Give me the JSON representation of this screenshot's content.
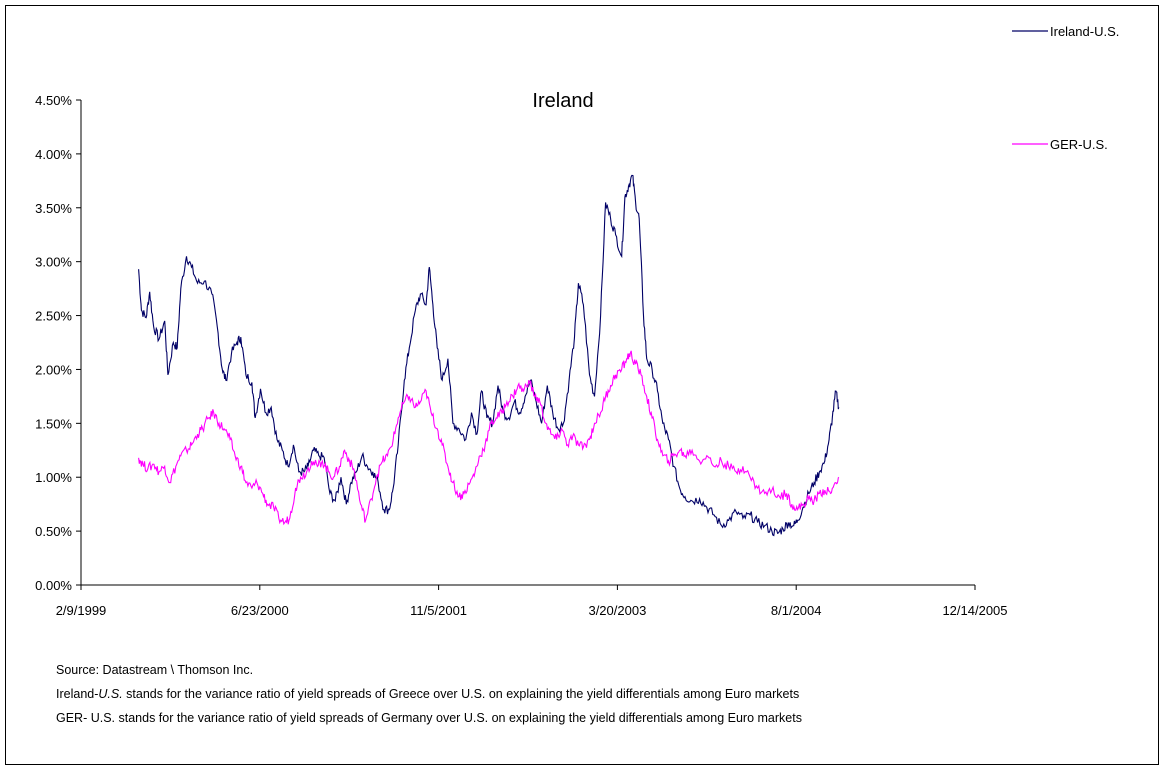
{
  "chart_data": {
    "type": "line",
    "title": "Ireland",
    "xlabel": "",
    "ylabel": "",
    "x_axis": {
      "type": "date",
      "range": [
        "1999-02-09",
        "2005-12-14"
      ],
      "tick_labels": [
        "2/9/1999",
        "6/23/2000",
        "11/5/2001",
        "3/20/2003",
        "8/1/2004",
        "12/14/2005"
      ],
      "tick_dates": [
        "1999-02-09",
        "2000-06-23",
        "2001-11-05",
        "2003-03-20",
        "2004-08-01",
        "2005-12-14"
      ]
    },
    "y_axis": {
      "range": [
        0,
        4.5
      ],
      "unit": "%",
      "tick_values": [
        0,
        0.5,
        1.0,
        1.5,
        2.0,
        2.5,
        3.0,
        3.5,
        4.0,
        4.5
      ],
      "tick_labels": [
        "0.00%",
        "0.50%",
        "1.00%",
        "1.50%",
        "2.00%",
        "2.50%",
        "3.00%",
        "3.50%",
        "4.00%",
        "4.50%"
      ]
    },
    "grid": false,
    "legend_position": "top-right",
    "series": [
      {
        "name": "Ireland-U.S.",
        "color": "#000066",
        "points": [
          [
            "1999-07-20",
            2.93
          ],
          [
            "1999-07-28",
            2.55
          ],
          [
            "1999-08-10",
            2.48
          ],
          [
            "1999-08-20",
            2.72
          ],
          [
            "1999-08-31",
            2.4
          ],
          [
            "1999-09-15",
            2.28
          ],
          [
            "1999-10-01",
            2.45
          ],
          [
            "1999-10-10",
            1.95
          ],
          [
            "1999-10-25",
            2.25
          ],
          [
            "1999-11-05",
            2.2
          ],
          [
            "1999-11-15",
            2.75
          ],
          [
            "1999-12-01",
            3.05
          ],
          [
            "1999-12-15",
            2.95
          ],
          [
            "2000-01-01",
            2.8
          ],
          [
            "2000-01-20",
            2.82
          ],
          [
            "2000-02-10",
            2.7
          ],
          [
            "2000-02-25",
            2.4
          ],
          [
            "2000-03-10",
            2.0
          ],
          [
            "2000-03-20",
            1.9
          ],
          [
            "2000-04-05",
            2.15
          ],
          [
            "2000-04-20",
            2.25
          ],
          [
            "2000-05-01",
            2.3
          ],
          [
            "2000-05-15",
            1.95
          ],
          [
            "2000-06-01",
            1.88
          ],
          [
            "2000-06-10",
            1.55
          ],
          [
            "2000-06-25",
            1.82
          ],
          [
            "2000-07-10",
            1.6
          ],
          [
            "2000-07-25",
            1.65
          ],
          [
            "2000-08-10",
            1.35
          ],
          [
            "2000-08-25",
            1.25
          ],
          [
            "2000-09-10",
            1.1
          ],
          [
            "2000-09-25",
            1.3
          ],
          [
            "2000-10-10",
            1.05
          ],
          [
            "2000-10-25",
            1.05
          ],
          [
            "2000-11-05",
            1.1
          ],
          [
            "2000-11-20",
            1.25
          ],
          [
            "2000-12-05",
            1.2
          ],
          [
            "2000-12-20",
            1.18
          ],
          [
            "2001-01-05",
            0.85
          ],
          [
            "2001-01-20",
            0.78
          ],
          [
            "2001-02-05",
            1.0
          ],
          [
            "2001-02-20",
            0.75
          ],
          [
            "2001-03-05",
            0.95
          ],
          [
            "2001-03-20",
            1.05
          ],
          [
            "2001-04-05",
            1.2
          ],
          [
            "2001-04-20",
            1.1
          ],
          [
            "2001-05-05",
            1.05
          ],
          [
            "2001-05-20",
            0.95
          ],
          [
            "2001-06-05",
            0.7
          ],
          [
            "2001-06-20",
            0.7
          ],
          [
            "2001-07-01",
            0.9
          ],
          [
            "2001-07-15",
            1.3
          ],
          [
            "2001-08-01",
            1.9
          ],
          [
            "2001-08-15",
            2.2
          ],
          [
            "2001-09-01",
            2.55
          ],
          [
            "2001-09-15",
            2.7
          ],
          [
            "2001-10-01",
            2.6
          ],
          [
            "2001-10-10",
            2.95
          ],
          [
            "2001-10-20",
            2.6
          ],
          [
            "2001-11-01",
            2.2
          ],
          [
            "2001-11-15",
            1.9
          ],
          [
            "2001-12-01",
            2.1
          ],
          [
            "2001-12-15",
            1.5
          ],
          [
            "2002-01-01",
            1.45
          ],
          [
            "2002-01-20",
            1.35
          ],
          [
            "2002-02-05",
            1.6
          ],
          [
            "2002-02-20",
            1.4
          ],
          [
            "2002-03-05",
            1.8
          ],
          [
            "2002-03-20",
            1.55
          ],
          [
            "2002-04-05",
            1.5
          ],
          [
            "2002-04-20",
            1.85
          ],
          [
            "2002-05-05",
            1.6
          ],
          [
            "2002-05-20",
            1.55
          ],
          [
            "2002-06-05",
            1.7
          ],
          [
            "2002-06-20",
            1.6
          ],
          [
            "2002-07-05",
            1.75
          ],
          [
            "2002-07-20",
            1.9
          ],
          [
            "2002-08-05",
            1.7
          ],
          [
            "2002-08-20",
            1.5
          ],
          [
            "2002-09-05",
            1.85
          ],
          [
            "2002-09-20",
            1.6
          ],
          [
            "2002-10-05",
            1.45
          ],
          [
            "2002-10-20",
            1.5
          ],
          [
            "2002-11-05",
            1.9
          ],
          [
            "2002-11-20",
            2.3
          ],
          [
            "2002-12-01",
            2.8
          ],
          [
            "2002-12-15",
            2.6
          ],
          [
            "2003-01-01",
            1.95
          ],
          [
            "2003-01-15",
            1.75
          ],
          [
            "2003-02-01",
            2.5
          ],
          [
            "2003-02-15",
            3.55
          ],
          [
            "2003-03-01",
            3.4
          ],
          [
            "2003-03-15",
            3.25
          ],
          [
            "2003-04-01",
            3.05
          ],
          [
            "2003-04-10",
            3.6
          ],
          [
            "2003-04-20",
            3.7
          ],
          [
            "2003-05-01",
            3.8
          ],
          [
            "2003-05-10",
            3.55
          ],
          [
            "2003-05-20",
            3.4
          ],
          [
            "2003-06-01",
            2.5
          ],
          [
            "2003-06-10",
            2.1
          ],
          [
            "2003-06-25",
            2.0
          ],
          [
            "2003-07-10",
            1.8
          ],
          [
            "2003-07-25",
            1.5
          ],
          [
            "2003-08-10",
            1.35
          ],
          [
            "2003-08-25",
            1.1
          ],
          [
            "2003-09-10",
            0.9
          ],
          [
            "2003-09-25",
            0.82
          ],
          [
            "2003-10-15",
            0.78
          ],
          [
            "2003-11-05",
            0.8
          ],
          [
            "2003-11-25",
            0.72
          ],
          [
            "2003-12-15",
            0.65
          ],
          [
            "2004-01-05",
            0.55
          ],
          [
            "2004-01-25",
            0.6
          ],
          [
            "2004-02-15",
            0.68
          ],
          [
            "2004-03-05",
            0.62
          ],
          [
            "2004-03-25",
            0.65
          ],
          [
            "2004-04-15",
            0.58
          ],
          [
            "2004-05-05",
            0.55
          ],
          [
            "2004-05-25",
            0.5
          ],
          [
            "2004-06-10",
            0.48
          ],
          [
            "2004-06-25",
            0.52
          ],
          [
            "2004-07-10",
            0.58
          ],
          [
            "2004-07-25",
            0.55
          ],
          [
            "2004-08-05",
            0.6
          ],
          [
            "2004-08-20",
            0.72
          ],
          [
            "2004-09-05",
            0.85
          ],
          [
            "2004-09-20",
            0.95
          ],
          [
            "2004-10-05",
            1.05
          ],
          [
            "2004-10-20",
            1.15
          ],
          [
            "2004-11-01",
            1.35
          ],
          [
            "2004-11-10",
            1.55
          ],
          [
            "2004-11-20",
            1.8
          ],
          [
            "2004-11-28",
            1.65
          ]
        ]
      },
      {
        "name": "GER-U.S.",
        "color": "#ff00ff",
        "points": [
          [
            "1999-07-20",
            1.18
          ],
          [
            "1999-08-01",
            1.12
          ],
          [
            "1999-08-15",
            1.08
          ],
          [
            "1999-09-01",
            1.12
          ],
          [
            "1999-09-15",
            1.05
          ],
          [
            "1999-10-01",
            1.1
          ],
          [
            "1999-10-15",
            0.95
          ],
          [
            "1999-11-01",
            1.1
          ],
          [
            "1999-11-15",
            1.2
          ],
          [
            "1999-12-01",
            1.25
          ],
          [
            "1999-12-15",
            1.3
          ],
          [
            "2000-01-01",
            1.4
          ],
          [
            "2000-01-15",
            1.45
          ],
          [
            "2000-02-01",
            1.55
          ],
          [
            "2000-02-15",
            1.6
          ],
          [
            "2000-03-01",
            1.5
          ],
          [
            "2000-03-15",
            1.45
          ],
          [
            "2000-04-01",
            1.35
          ],
          [
            "2000-04-15",
            1.2
          ],
          [
            "2000-05-01",
            1.1
          ],
          [
            "2000-05-15",
            0.95
          ],
          [
            "2000-06-01",
            0.9
          ],
          [
            "2000-06-15",
            0.95
          ],
          [
            "2000-07-01",
            0.85
          ],
          [
            "2000-07-15",
            0.75
          ],
          [
            "2000-08-01",
            0.72
          ],
          [
            "2000-08-15",
            0.62
          ],
          [
            "2000-09-01",
            0.58
          ],
          [
            "2000-09-15",
            0.62
          ],
          [
            "2000-10-01",
            0.9
          ],
          [
            "2000-10-15",
            1.0
          ],
          [
            "2000-11-01",
            1.05
          ],
          [
            "2000-11-15",
            1.15
          ],
          [
            "2000-12-01",
            1.1
          ],
          [
            "2000-12-15",
            1.15
          ],
          [
            "2001-01-01",
            1.05
          ],
          [
            "2001-01-15",
            1.0
          ],
          [
            "2001-02-01",
            1.1
          ],
          [
            "2001-02-15",
            1.25
          ],
          [
            "2001-03-01",
            1.15
          ],
          [
            "2001-03-15",
            1.05
          ],
          [
            "2001-04-01",
            0.75
          ],
          [
            "2001-04-15",
            0.6
          ],
          [
            "2001-05-01",
            0.8
          ],
          [
            "2001-05-15",
            1.0
          ],
          [
            "2001-06-01",
            1.15
          ],
          [
            "2001-06-15",
            1.2
          ],
          [
            "2001-07-01",
            1.35
          ],
          [
            "2001-07-15",
            1.55
          ],
          [
            "2001-08-01",
            1.7
          ],
          [
            "2001-08-15",
            1.75
          ],
          [
            "2001-09-01",
            1.65
          ],
          [
            "2001-09-15",
            1.7
          ],
          [
            "2001-10-01",
            1.8
          ],
          [
            "2001-10-15",
            1.6
          ],
          [
            "2001-11-01",
            1.45
          ],
          [
            "2001-11-15",
            1.3
          ],
          [
            "2001-12-01",
            1.1
          ],
          [
            "2001-12-15",
            0.95
          ],
          [
            "2002-01-01",
            0.82
          ],
          [
            "2002-01-15",
            0.85
          ],
          [
            "2002-02-01",
            0.95
          ],
          [
            "2002-02-15",
            1.05
          ],
          [
            "2002-03-01",
            1.2
          ],
          [
            "2002-03-15",
            1.3
          ],
          [
            "2002-04-01",
            1.5
          ],
          [
            "2002-04-15",
            1.55
          ],
          [
            "2002-05-01",
            1.6
          ],
          [
            "2002-05-15",
            1.7
          ],
          [
            "2002-06-01",
            1.75
          ],
          [
            "2002-06-15",
            1.85
          ],
          [
            "2002-07-01",
            1.8
          ],
          [
            "2002-07-15",
            1.9
          ],
          [
            "2002-08-01",
            1.75
          ],
          [
            "2002-08-15",
            1.7
          ],
          [
            "2002-09-01",
            1.5
          ],
          [
            "2002-09-15",
            1.4
          ],
          [
            "2002-10-01",
            1.35
          ],
          [
            "2002-10-15",
            1.45
          ],
          [
            "2002-11-01",
            1.3
          ],
          [
            "2002-11-15",
            1.38
          ],
          [
            "2002-12-01",
            1.3
          ],
          [
            "2002-12-15",
            1.28
          ],
          [
            "2003-01-01",
            1.35
          ],
          [
            "2003-01-15",
            1.5
          ],
          [
            "2003-02-01",
            1.6
          ],
          [
            "2003-02-15",
            1.75
          ],
          [
            "2003-03-01",
            1.85
          ],
          [
            "2003-03-15",
            1.95
          ],
          [
            "2003-04-01",
            2.0
          ],
          [
            "2003-04-15",
            2.1
          ],
          [
            "2003-04-25",
            2.15
          ],
          [
            "2003-05-10",
            2.05
          ],
          [
            "2003-05-25",
            1.95
          ],
          [
            "2003-06-10",
            1.75
          ],
          [
            "2003-06-25",
            1.55
          ],
          [
            "2003-07-10",
            1.35
          ],
          [
            "2003-07-25",
            1.2
          ],
          [
            "2003-08-10",
            1.15
          ],
          [
            "2003-08-25",
            1.2
          ],
          [
            "2003-09-10",
            1.25
          ],
          [
            "2003-09-25",
            1.2
          ],
          [
            "2003-10-15",
            1.25
          ],
          [
            "2003-11-05",
            1.15
          ],
          [
            "2003-11-25",
            1.2
          ],
          [
            "2003-12-15",
            1.1
          ],
          [
            "2004-01-05",
            1.15
          ],
          [
            "2004-01-25",
            1.1
          ],
          [
            "2004-02-15",
            1.05
          ],
          [
            "2004-03-05",
            1.1
          ],
          [
            "2004-03-25",
            1.0
          ],
          [
            "2004-04-15",
            0.9
          ],
          [
            "2004-05-05",
            0.85
          ],
          [
            "2004-05-25",
            0.88
          ],
          [
            "2004-06-15",
            0.82
          ],
          [
            "2004-07-05",
            0.85
          ],
          [
            "2004-07-20",
            0.75
          ],
          [
            "2004-08-05",
            0.7
          ],
          [
            "2004-08-20",
            0.75
          ],
          [
            "2004-09-05",
            0.8
          ],
          [
            "2004-09-20",
            0.78
          ],
          [
            "2004-10-05",
            0.85
          ],
          [
            "2004-10-20",
            0.88
          ],
          [
            "2004-11-05",
            0.85
          ],
          [
            "2004-11-20",
            0.95
          ],
          [
            "2004-11-28",
            1.0
          ]
        ]
      }
    ]
  },
  "notes": {
    "source": "Source: Datastream \\ Thomson Inc.",
    "line1_prefix": "Ireland-",
    "line1_em": "U.S.",
    "line1_rest": " stands for the variance ratio of yield spreads of Greece over U.S. on explaining the yield differentials among Euro markets",
    "line2": "GER- U.S. stands for the variance ratio of yield spreads of Germany over U.S. on explaining the yield differentials among Euro markets"
  }
}
